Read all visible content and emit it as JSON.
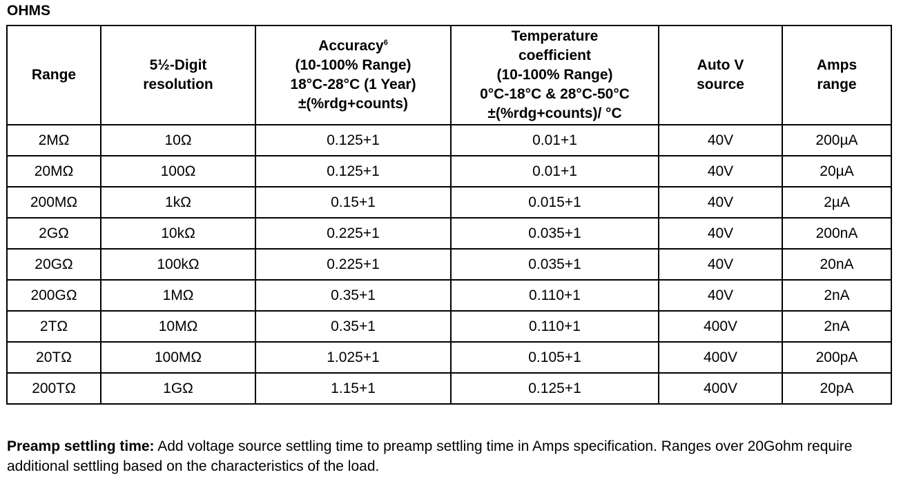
{
  "section_title": "OHMS",
  "headers": {
    "range": "Range",
    "resolution": [
      "5½-Digit",
      "resolution"
    ],
    "accuracy": {
      "title": "Accuracy",
      "footnote": "6",
      "lines": [
        "(10-100% Range)",
        "18°C-28°C (1 Year)",
        "±(%rdg+counts)"
      ]
    },
    "tempco": [
      "Temperature",
      "coefficient",
      "(10-100% Range)",
      "0°C-18°C & 28°C-50°C",
      "±(%rdg+counts)/ °C"
    ],
    "autov": [
      "Auto V",
      "source"
    ],
    "amps": [
      "Amps",
      "range"
    ]
  },
  "rows": [
    [
      "2MΩ",
      "10Ω",
      "0.125+1",
      "0.01+1",
      "40V",
      "200µA"
    ],
    [
      "20MΩ",
      "100Ω",
      "0.125+1",
      "0.01+1",
      "40V",
      "20µA"
    ],
    [
      "200MΩ",
      "1kΩ",
      "0.15+1",
      "0.015+1",
      "40V",
      "2µA"
    ],
    [
      "2GΩ",
      "10kΩ",
      "0.225+1",
      "0.035+1",
      "40V",
      "200nA"
    ],
    [
      "20GΩ",
      "100kΩ",
      "0.225+1",
      "0.035+1",
      "40V",
      "20nA"
    ],
    [
      "200GΩ",
      "1MΩ",
      "0.35+1",
      "0.110+1",
      "40V",
      "2nA"
    ],
    [
      "2TΩ",
      "10MΩ",
      "0.35+1",
      "0.110+1",
      "400V",
      "2nA"
    ],
    [
      "20TΩ",
      "100MΩ",
      "1.025+1",
      "0.105+1",
      "400V",
      "200pA"
    ],
    [
      "200TΩ",
      "1GΩ",
      "1.15+1",
      "0.125+1",
      "400V",
      "20pA"
    ]
  ],
  "note": {
    "label": "Preamp settling time:",
    "text": " Add voltage source settling time to preamp settling time in Amps specification.  Ranges over 20Gohm require additional settling based on the characteristics of the load."
  }
}
